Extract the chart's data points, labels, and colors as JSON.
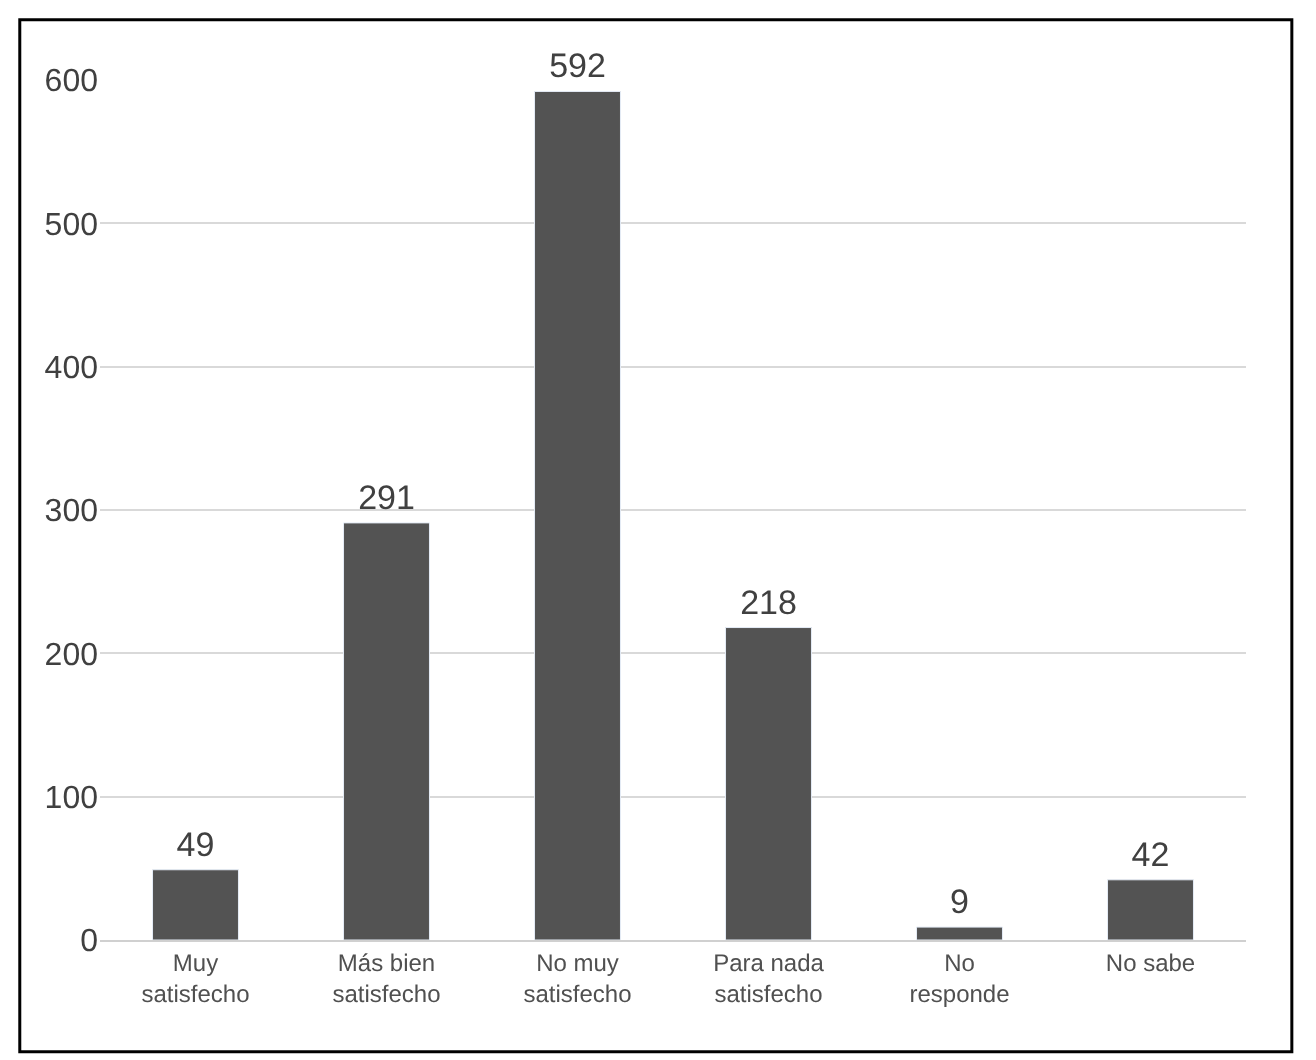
{
  "chart_data": {
    "type": "bar",
    "categories": [
      "Muy\nsatisfecho",
      "Más bien\nsatisfecho",
      "No muy\nsatisfecho",
      "Para nada\nsatisfecho",
      "No\nresponde",
      "No sabe"
    ],
    "values": [
      49,
      291,
      592,
      218,
      9,
      42
    ],
    "color": "#535353",
    "ylim": [
      0,
      600
    ],
    "yticks": [
      0,
      100,
      200,
      300,
      400,
      500,
      600
    ],
    "grid": "y",
    "data_labels": true,
    "legend": false
  }
}
